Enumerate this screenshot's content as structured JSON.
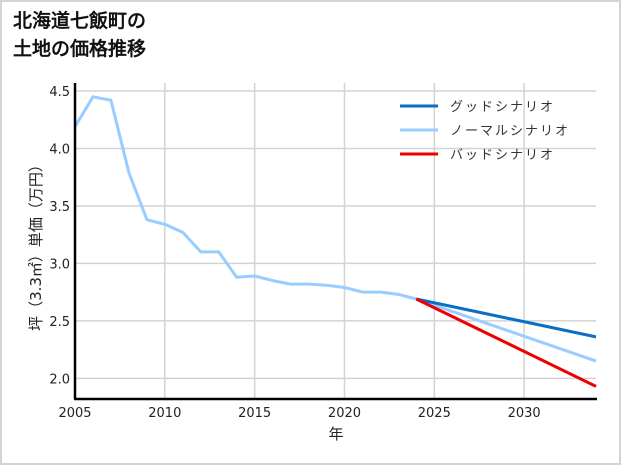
{
  "title": {
    "line1": "北海道七飯町の",
    "line2": "土地の価格推移"
  },
  "colors": {
    "good": "#0a6fc4",
    "normal": "#99ccff",
    "bad": "#ee0000",
    "grid": "#d3d3d3",
    "axis": "#000000"
  },
  "legend": [
    {
      "label": "グッドシナリオ",
      "color": "#0a6fc4"
    },
    {
      "label": "ノーマルシナリオ",
      "color": "#99ccff"
    },
    {
      "label": "バッドシナリオ",
      "color": "#ee0000"
    }
  ],
  "axes": {
    "xlabel": "年",
    "ylabel": "坪（3.3㎡）単価（万円）",
    "xticks": [
      "2005",
      "2010",
      "2015",
      "2020",
      "2025",
      "2030"
    ],
    "yticks": [
      "2.0",
      "2.5",
      "3.0",
      "3.5",
      "4.0",
      "4.5"
    ]
  },
  "chart_data": {
    "type": "line",
    "title": "北海道七飯町の土地の価格推移",
    "xlabel": "年",
    "ylabel": "坪（3.3㎡）単価（万円）",
    "xlim": [
      2005,
      2034
    ],
    "ylim": [
      1.82,
      4.57
    ],
    "grid": true,
    "legend_position": "upper right",
    "series": [
      {
        "name": "ノーマルシナリオ",
        "color": "#99ccff",
        "x": [
          2005,
          2006,
          2007,
          2008,
          2009,
          2010,
          2011,
          2012,
          2013,
          2014,
          2015,
          2016,
          2017,
          2018,
          2019,
          2020,
          2021,
          2022,
          2023,
          2024,
          2034
        ],
        "y": [
          4.19,
          4.45,
          4.42,
          3.79,
          3.38,
          3.34,
          3.27,
          3.1,
          3.1,
          2.88,
          2.89,
          2.85,
          2.82,
          2.82,
          2.81,
          2.79,
          2.75,
          2.75,
          2.73,
          2.69,
          2.15
        ]
      },
      {
        "name": "グッドシナリオ",
        "color": "#0a6fc4",
        "x": [
          2024,
          2034
        ],
        "y": [
          2.69,
          2.36
        ]
      },
      {
        "name": "バッドシナリオ",
        "color": "#ee0000",
        "x": [
          2024,
          2034
        ],
        "y": [
          2.69,
          1.93
        ]
      }
    ]
  }
}
